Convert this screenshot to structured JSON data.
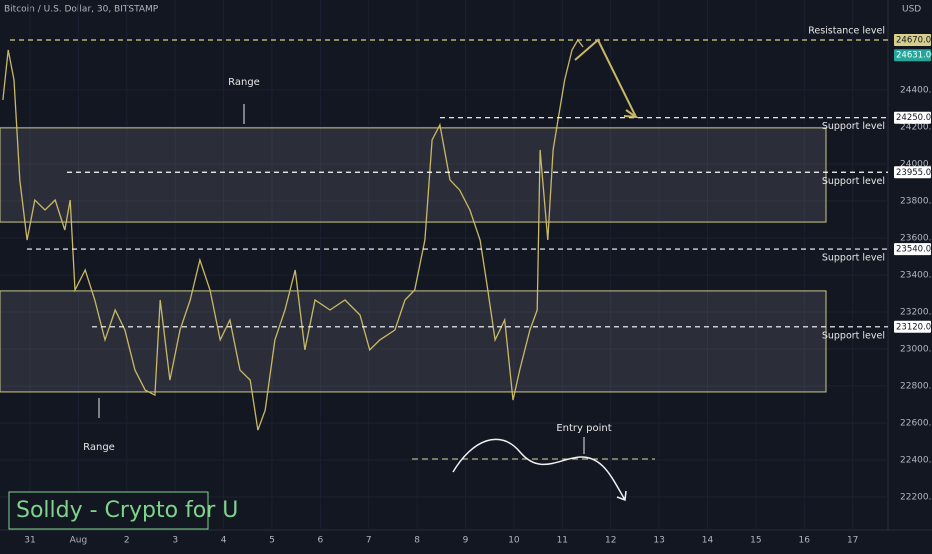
{
  "chart_data": {
    "type": "line",
    "title": "Bitcoin / U.S. Dollar, 30, BITSTAMP",
    "currency": "USD",
    "color": "#c9b865",
    "x": [
      -0.56,
      -0.45,
      -0.33,
      -0.21,
      -0.06,
      0.1,
      0.31,
      0.52,
      0.72,
      0.83,
      0.93,
      1.14,
      1.34,
      1.55,
      1.76,
      1.96,
      2.17,
      2.38,
      2.58,
      2.69,
      2.89,
      3.1,
      3.31,
      3.51,
      3.72,
      3.93,
      4.13,
      4.34,
      4.55,
      4.71,
      4.86,
      5.06,
      5.27,
      5.48,
      5.68,
      5.89,
      6.2,
      6.51,
      6.82,
      7.02,
      7.23,
      7.54,
      7.75,
      7.95,
      8.16,
      8.31,
      8.47,
      8.68,
      8.88,
      9.09,
      9.3,
      9.46,
      9.61,
      9.81,
      9.98,
      10.12,
      10.33,
      10.48,
      10.54,
      10.7,
      10.81,
      10.91,
      11.05,
      11.2,
      11.32,
      11.43
    ],
    "values": [
      24346,
      24616,
      24454,
      23914,
      23589,
      23805,
      23751,
      23805,
      23643,
      23805,
      23319,
      23427,
      23265,
      23049,
      23211,
      23103,
      22886,
      22778,
      22751,
      23265,
      22832,
      23103,
      23265,
      23481,
      23319,
      23049,
      23157,
      22886,
      22832,
      22562,
      22670,
      23049,
      23211,
      23427,
      22995,
      23265,
      23211,
      23265,
      23184,
      22995,
      23049,
      23103,
      23265,
      23319,
      23589,
      24130,
      24211,
      23914,
      23859,
      23751,
      23589,
      23319,
      23049,
      23157,
      22724,
      22886,
      23103,
      23211,
      24076,
      23589,
      24076,
      24238,
      24454,
      24616,
      24670,
      24632
    ],
    "xlim": [
      -0.62,
      17.73
    ],
    "xticks": [
      {
        "value": 0,
        "label": "31"
      },
      {
        "value": 1,
        "label": "Aug"
      },
      2,
      3,
      4,
      5,
      6,
      7,
      8,
      9,
      10,
      11,
      12,
      13,
      14,
      15,
      16,
      17
    ],
    "ylim": [
      22049,
      24886
    ],
    "yticks": [
      {
        "value": 22200,
        "label": "22200.00"
      },
      {
        "value": 22400,
        "label": "22400.00"
      },
      {
        "value": 22600,
        "label": "22600.00"
      },
      {
        "value": 22800,
        "label": "22800.00"
      },
      {
        "value": 23000,
        "label": "23000.00"
      },
      {
        "value": 23200,
        "label": "23200.00"
      },
      {
        "value": 23400,
        "label": "23400.00"
      },
      {
        "value": 23600,
        "label": "23600.00"
      },
      {
        "value": 23800,
        "label": "23800.00"
      },
      {
        "value": 24000,
        "label": "24000.00"
      },
      {
        "value": 24200,
        "label": "24200.00"
      },
      {
        "value": 24400,
        "label": "24400.00"
      }
    ],
    "grid": true,
    "last_price": {
      "value": 24631,
      "label": "24631.00"
    },
    "levels": [
      {
        "label": "Resistance level",
        "value": 24670,
        "value_label": "24670.00"
      },
      {
        "label": "Support level",
        "value": 24250,
        "value_label": "24250.00"
      },
      {
        "label": "Support level",
        "value": 23955,
        "value_label": "23955.00"
      },
      {
        "label": "Support level",
        "value": 23540,
        "value_label": "23540.00"
      },
      {
        "label": "Support level",
        "value": 23120,
        "value_label": "23120.00"
      }
    ],
    "ranges": [
      {
        "label": "Range",
        "top": 24195,
        "bottom": 23686
      },
      {
        "label": "Range",
        "top": 23314,
        "bottom": 22768
      }
    ],
    "annotation": "Entry point",
    "watermark": "Solldy - Crypto for U"
  }
}
